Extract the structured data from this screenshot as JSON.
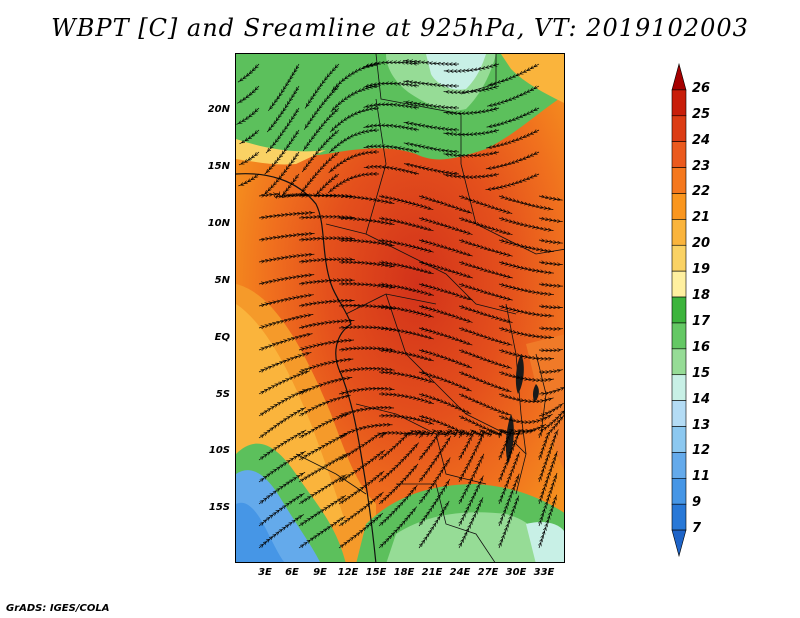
{
  "title": "WBPT [C] and Sreamline at 925hPa, VT: 2019102003",
  "credit": "GrADS: IGES/COLA",
  "map": {
    "variable": "Wet-bulb potential temperature",
    "units": "C",
    "level": "925hPa",
    "valid_time": "2019102003",
    "lon_ticks": [
      "3E",
      "6E",
      "9E",
      "12E",
      "15E",
      "18E",
      "21E",
      "24E",
      "27E",
      "30E",
      "33E"
    ],
    "lat_ticks": [
      "20N",
      "15N",
      "10N",
      "5N",
      "EQ",
      "5S",
      "10S",
      "15S"
    ]
  },
  "colorbar": {
    "labels": [
      "26",
      "25",
      "24",
      "23",
      "22",
      "21",
      "20",
      "19",
      "18",
      "17",
      "16",
      "15",
      "14",
      "13",
      "12",
      "11",
      "9",
      "7"
    ],
    "colors": [
      "#a50000",
      "#c81e0a",
      "#dc3c14",
      "#eb5a1e",
      "#f5781e",
      "#fa961e",
      "#fab43c",
      "#fad264",
      "#fff0a0",
      "#3cb43c",
      "#64c864",
      "#96dc96",
      "#c8f0e6",
      "#b4dcf5",
      "#8cc8f0",
      "#64aaeb",
      "#4696e6",
      "#2878d7",
      "#1e64c8"
    ]
  }
}
